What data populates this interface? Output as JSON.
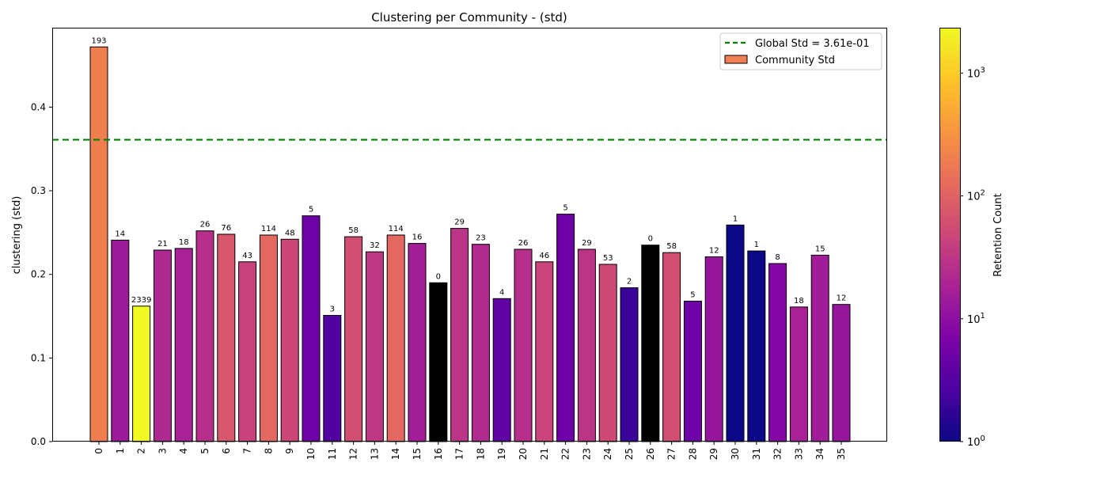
{
  "chart_data": {
    "type": "bar",
    "title": "Clustering per Community - (std)",
    "xlabel": "",
    "ylabel": "clustering (std)",
    "ylim": [
      0,
      0.495
    ],
    "yticks": [
      0.0,
      0.1,
      0.2,
      0.3,
      0.4
    ],
    "ytick_labels": [
      "0.0",
      "0.1",
      "0.2",
      "0.3",
      "0.4"
    ],
    "categories": [
      "0",
      "1",
      "2",
      "3",
      "4",
      "5",
      "6",
      "7",
      "8",
      "9",
      "10",
      "11",
      "12",
      "13",
      "14",
      "15",
      "16",
      "17",
      "18",
      "19",
      "20",
      "21",
      "22",
      "23",
      "24",
      "25",
      "26",
      "27",
      "28",
      "29",
      "30",
      "31",
      "32",
      "33",
      "34",
      "35"
    ],
    "series": [
      {
        "name": "Community Std",
        "values": [
          0.472,
          0.241,
          0.162,
          0.229,
          0.231,
          0.252,
          0.248,
          0.215,
          0.247,
          0.242,
          0.27,
          0.151,
          0.245,
          0.227,
          0.247,
          0.237,
          0.19,
          0.255,
          0.236,
          0.171,
          0.23,
          0.215,
          0.272,
          0.23,
          0.212,
          0.184,
          0.235,
          0.226,
          0.168,
          0.221,
          0.259,
          0.228,
          0.213,
          0.161,
          0.223,
          0.164
        ],
        "counts": [
          193,
          14,
          2339,
          21,
          18,
          26,
          76,
          43,
          114,
          48,
          5,
          3,
          58,
          32,
          114,
          16,
          0,
          29,
          23,
          4,
          26,
          46,
          5,
          29,
          53,
          2,
          0,
          58,
          5,
          12,
          1,
          1,
          8,
          18,
          15,
          12
        ],
        "count_labels": [
          "193",
          "14",
          "2339",
          "21",
          "18",
          "26",
          "76",
          "43",
          "114",
          "48",
          "5",
          "3",
          "58",
          "32",
          "114",
          "16",
          "0",
          "29",
          "23",
          "4",
          "26",
          "46",
          "5",
          "29",
          "53",
          "2",
          "0",
          "58",
          "5",
          "12",
          "1",
          "1",
          "8",
          "18",
          "15",
          "12"
        ]
      }
    ],
    "reference_line": {
      "label": "Global Std = 3.61e-01",
      "value": 0.361,
      "color": "#008000"
    },
    "legend": {
      "placement": "top-right",
      "entries": [
        {
          "label": "Global Std = 3.61e-01",
          "kind": "dashed-line",
          "color": "#008000"
        },
        {
          "label": "Community Std",
          "kind": "patch",
          "color": "#f07f56"
        }
      ]
    },
    "colorbar": {
      "label": "Retention Count",
      "scale": "log",
      "colormap": "plasma",
      "range": [
        1,
        2339
      ],
      "ticks": [
        {
          "value": 1,
          "base": "10",
          "exp": "0"
        },
        {
          "value": 10,
          "base": "10",
          "exp": "1"
        },
        {
          "value": 100,
          "base": "10",
          "exp": "2"
        },
        {
          "value": 1000,
          "base": "10",
          "exp": "3"
        }
      ]
    },
    "grid": false
  }
}
